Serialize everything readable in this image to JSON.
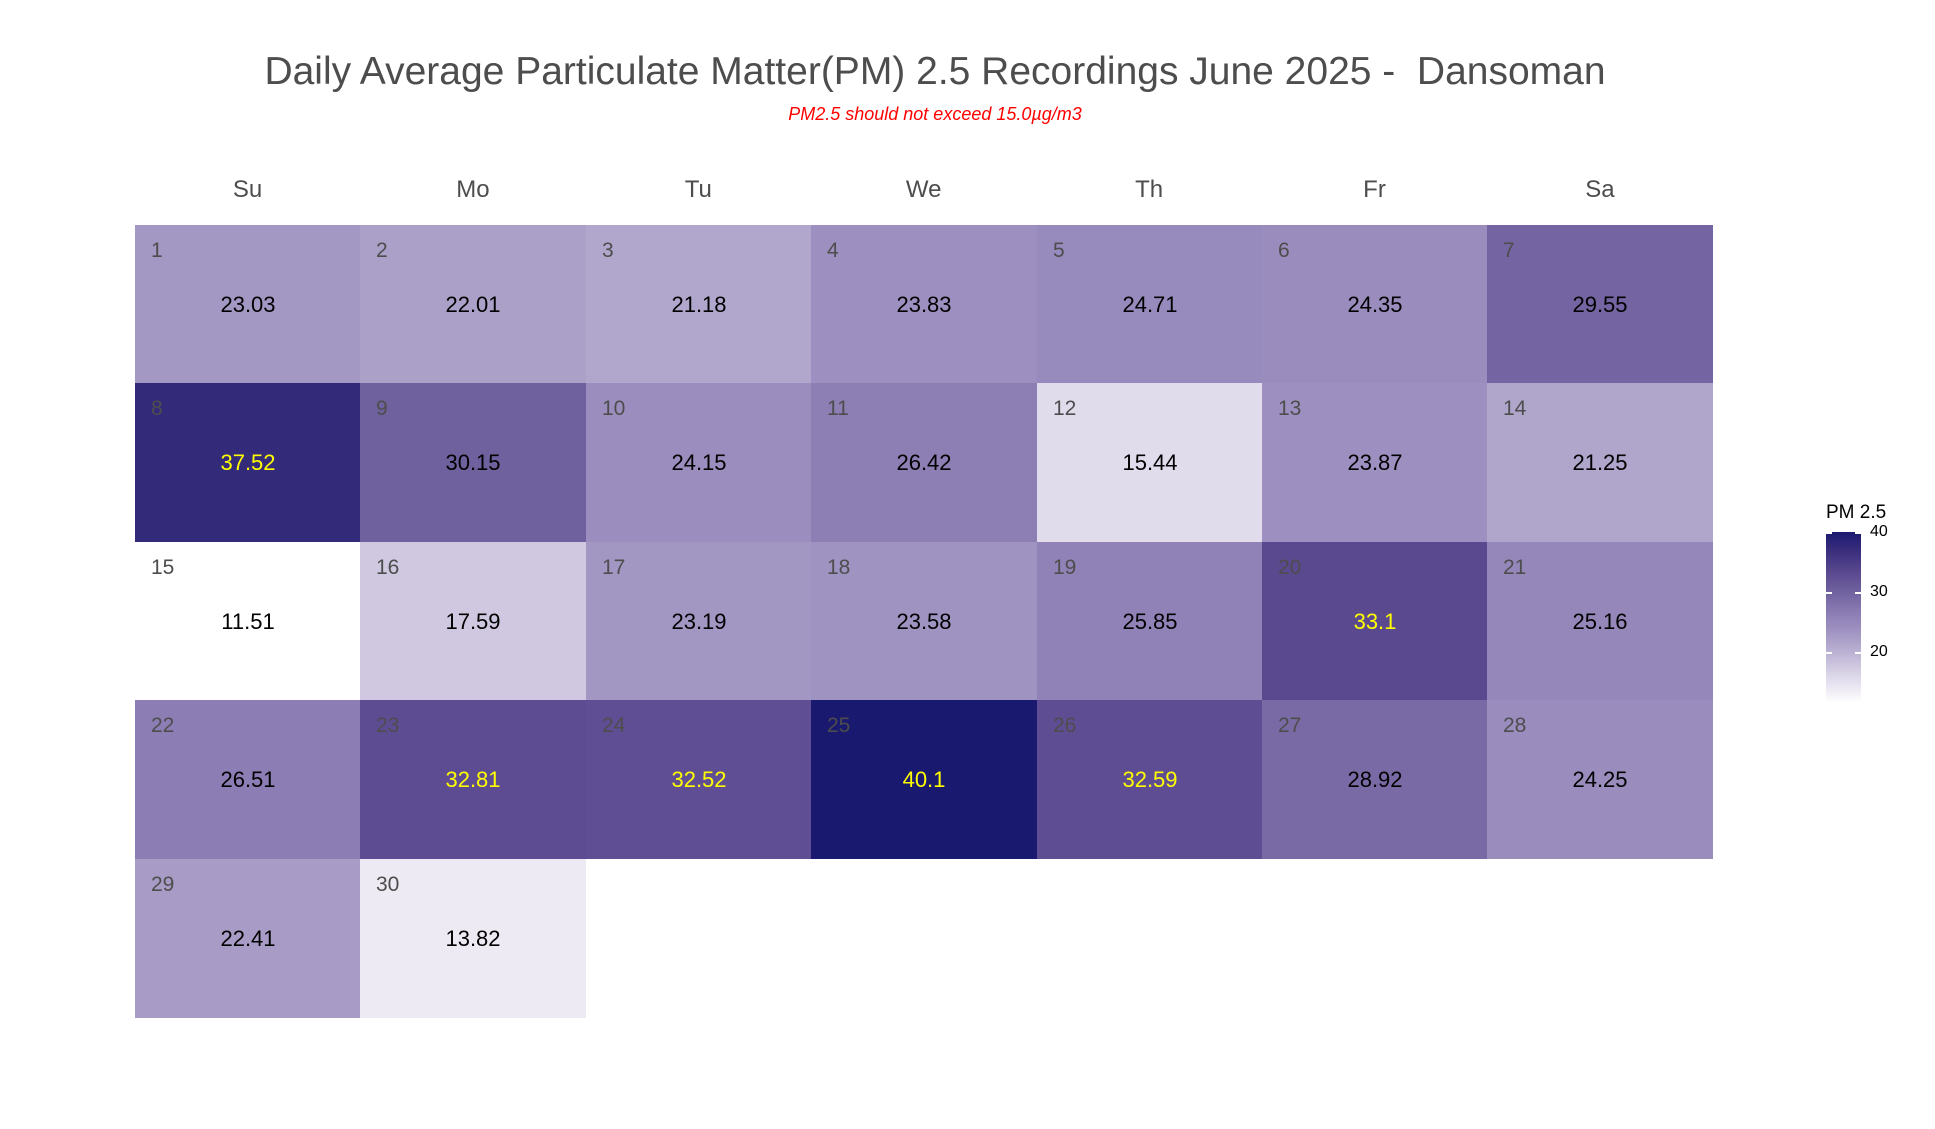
{
  "chart_data": {
    "type": "heatmap",
    "title": "Daily Average Particulate Matter(PM) 2.5 Recordings June 2025 -  Dansoman",
    "subtitle": "PM2.5 should not exceed 15.0µg/m3",
    "xlabel": "",
    "ylabel": "",
    "weekdays": [
      "Su",
      "Mo",
      "Tu",
      "We",
      "Th",
      "Fr",
      "Sa"
    ],
    "first_weekday_index": 0,
    "days": [
      {
        "day": 1,
        "value": 23.03
      },
      {
        "day": 2,
        "value": 22.01
      },
      {
        "day": 3,
        "value": 21.18
      },
      {
        "day": 4,
        "value": 23.83
      },
      {
        "day": 5,
        "value": 24.71
      },
      {
        "day": 6,
        "value": 24.35
      },
      {
        "day": 7,
        "value": 29.55
      },
      {
        "day": 8,
        "value": 37.52
      },
      {
        "day": 9,
        "value": 30.15
      },
      {
        "day": 10,
        "value": 24.15
      },
      {
        "day": 11,
        "value": 26.42
      },
      {
        "day": 12,
        "value": 15.44
      },
      {
        "day": 13,
        "value": 23.87
      },
      {
        "day": 14,
        "value": 21.25
      },
      {
        "day": 15,
        "value": 11.51
      },
      {
        "day": 16,
        "value": 17.59
      },
      {
        "day": 17,
        "value": 23.19
      },
      {
        "day": 18,
        "value": 23.58
      },
      {
        "day": 19,
        "value": 25.85
      },
      {
        "day": 20,
        "value": 33.1
      },
      {
        "day": 21,
        "value": 25.16
      },
      {
        "day": 22,
        "value": 26.51
      },
      {
        "day": 23,
        "value": 32.81
      },
      {
        "day": 24,
        "value": 32.52
      },
      {
        "day": 25,
        "value": 40.1
      },
      {
        "day": 26,
        "value": 32.59
      },
      {
        "day": 27,
        "value": 28.92
      },
      {
        "day": 28,
        "value": 24.25
      },
      {
        "day": 29,
        "value": 22.41
      },
      {
        "day": 30,
        "value": 13.82
      }
    ],
    "highlight_threshold": 32,
    "label_colors": {
      "normal": "#000000",
      "high": "#ffff00",
      "day_number": "#4d4d4d"
    },
    "color_scale": {
      "low": "#ffffff",
      "high": "#191970",
      "min": 11.51,
      "max": 40.1
    },
    "legend": {
      "title": "PM 2.5",
      "ticks": [
        40,
        30,
        20
      ],
      "position": "right"
    }
  }
}
